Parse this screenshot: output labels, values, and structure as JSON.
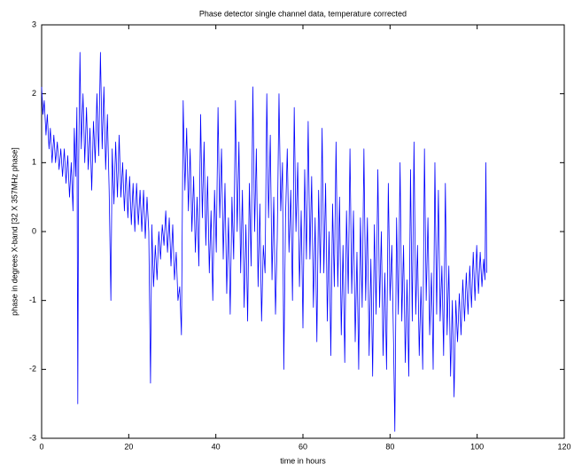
{
  "chart_data": {
    "type": "line",
    "title": "Phase detector single channel data, temperature corrected",
    "x_label": "time in hours",
    "y_label": "phase in degrees X-band [32 X 357MHz phase]",
    "xlim": [
      0,
      120
    ],
    "xticks": [
      0,
      20,
      40,
      60,
      80,
      100,
      120
    ],
    "ylim": [
      -3,
      3
    ],
    "yticks": [
      -3,
      -2,
      -1,
      0,
      1,
      2,
      3
    ],
    "grid": false,
    "x": [
      0,
      0.3,
      0.6,
      1,
      1.3,
      1.7,
      2,
      2.4,
      2.8,
      3.2,
      3.6,
      4,
      4.4,
      4.8,
      5.2,
      5.6,
      6,
      6.4,
      6.8,
      7.2,
      7.5,
      7.8,
      8.1,
      8.3,
      8.5,
      8.8,
      9.1,
      9.5,
      9.9,
      10.3,
      10.7,
      11.1,
      11.5,
      11.9,
      12.3,
      12.7,
      13.1,
      13.5,
      13.9,
      14.3,
      14.7,
      15.1,
      15.5,
      15.9,
      16.2,
      16.6,
      17,
      17.4,
      17.8,
      18.2,
      18.6,
      19,
      19.4,
      19.8,
      20.2,
      20.6,
      21,
      21.4,
      21.8,
      22.2,
      22.6,
      23,
      23.4,
      23.8,
      24.2,
      24.6,
      25,
      25.3,
      25.7,
      26.1,
      26.5,
      26.9,
      27.3,
      27.7,
      28.1,
      28.5,
      28.9,
      29.3,
      29.7,
      30.1,
      30.5,
      30.9,
      31.3,
      31.7,
      32.1,
      32.5,
      32.9,
      33.3,
      33.7,
      34.1,
      34.5,
      34.9,
      35.3,
      35.7,
      36.1,
      36.5,
      36.9,
      37.3,
      37.7,
      38.1,
      38.5,
      38.9,
      39.3,
      39.7,
      40.1,
      40.5,
      40.9,
      41.3,
      41.7,
      42.1,
      42.5,
      42.9,
      43.3,
      43.7,
      44.1,
      44.5,
      44.9,
      45.3,
      45.7,
      46.1,
      46.5,
      46.9,
      47.3,
      47.7,
      48.1,
      48.5,
      48.9,
      49.3,
      49.7,
      50.1,
      50.5,
      50.9,
      51.3,
      51.7,
      52.1,
      52.5,
      52.9,
      53.3,
      53.7,
      54.1,
      54.5,
      54.9,
      55.3,
      55.6,
      56,
      56.4,
      56.8,
      57.2,
      57.6,
      58,
      58.4,
      58.8,
      59.2,
      59.6,
      60,
      60.4,
      60.8,
      61.2,
      61.6,
      62,
      62.4,
      62.8,
      63.2,
      63.6,
      64,
      64.4,
      64.8,
      65.2,
      65.6,
      66,
      66.4,
      66.8,
      67.2,
      67.6,
      68,
      68.4,
      68.8,
      69.2,
      69.6,
      70,
      70.4,
      70.8,
      71.2,
      71.6,
      72,
      72.4,
      72.8,
      73.2,
      73.6,
      74,
      74.4,
      74.8,
      75.2,
      75.6,
      76,
      76.4,
      76.8,
      77.2,
      77.6,
      78,
      78.4,
      78.8,
      79.2,
      79.6,
      80,
      80.4,
      80.8,
      81.1,
      81.5,
      81.9,
      82.3,
      82.7,
      83.1,
      83.5,
      83.9,
      84.3,
      84.7,
      85.1,
      85.5,
      85.9,
      86.3,
      86.7,
      87.1,
      87.5,
      87.9,
      88.3,
      88.7,
      89.1,
      89.5,
      89.9,
      90.3,
      90.7,
      91.1,
      91.5,
      91.9,
      92.3,
      92.7,
      93.1,
      93.5,
      93.9,
      94.3,
      94.7,
      95.1,
      95.5,
      95.9,
      96.3,
      96.7,
      97.1,
      97.5,
      97.9,
      98.3,
      98.7,
      99.1,
      99.5,
      99.9,
      100.3,
      100.7,
      101.1,
      101.5,
      101.8,
      102,
      102.2
    ],
    "series": [
      {
        "color": "#0000ff",
        "values": [
          2.1,
          1.7,
          1.9,
          1.4,
          1.7,
          1.2,
          1.5,
          1.0,
          1.4,
          1.0,
          1.3,
          0.9,
          1.2,
          0.8,
          1.2,
          0.7,
          1.1,
          0.5,
          1.0,
          0.3,
          1.5,
          0.8,
          1.8,
          -2.5,
          1.0,
          2.6,
          1.2,
          2.0,
          1.0,
          1.8,
          0.9,
          1.5,
          0.6,
          1.6,
          1.0,
          2.0,
          1.1,
          2.6,
          1.2,
          2.1,
          0.9,
          1.7,
          0.6,
          -1.0,
          1.2,
          0.4,
          1.3,
          0.5,
          1.4,
          0.5,
          1.0,
          0.3,
          0.9,
          0.2,
          0.8,
          0.1,
          0.7,
          0.0,
          0.7,
          0.1,
          0.6,
          0.0,
          0.6,
          -0.1,
          0.5,
          0.0,
          -2.2,
          0.1,
          -0.8,
          -0.2,
          -0.7,
          0.0,
          -0.4,
          0.1,
          -0.2,
          0.3,
          -0.3,
          0.2,
          -0.5,
          0.1,
          -0.7,
          -0.3,
          -1.0,
          -0.8,
          -1.5,
          1.9,
          0.6,
          1.5,
          0.3,
          1.2,
          0.0,
          0.8,
          -0.3,
          0.5,
          -0.5,
          1.7,
          0.2,
          1.3,
          -0.2,
          0.8,
          -0.6,
          0.3,
          -1.0,
          0.6,
          -0.3,
          1.8,
          0.2,
          1.2,
          -0.4,
          0.7,
          -0.9,
          0.2,
          -1.2,
          0.5,
          -0.4,
          1.9,
          0.0,
          1.3,
          -0.6,
          0.6,
          -1.1,
          0.1,
          -1.3,
          0.7,
          -0.5,
          2.1,
          0.0,
          1.2,
          -0.8,
          0.4,
          -1.3,
          -0.2,
          -0.6,
          2.0,
          0.2,
          1.4,
          -0.7,
          0.5,
          -1.2,
          -0.1,
          2.0,
          0.3,
          1.0,
          -2.0,
          0.2,
          1.2,
          -0.3,
          0.6,
          -1.0,
          1.8,
          0.0,
          1.0,
          -0.8,
          0.3,
          -1.4,
          0.9,
          -0.4,
          1.6,
          -0.4,
          0.8,
          -1.1,
          0.2,
          -1.6,
          0.6,
          -0.6,
          1.5,
          -0.6,
          0.7,
          -1.3,
          0.0,
          -1.8,
          0.4,
          -0.8,
          1.3,
          -0.8,
          0.5,
          -1.5,
          -0.2,
          -1.9,
          0.3,
          -0.9,
          1.2,
          -0.9,
          0.3,
          -1.6,
          -0.3,
          -2.0,
          0.2,
          -1.1,
          1.2,
          -1.0,
          0.2,
          -1.8,
          -0.4,
          -2.1,
          0.1,
          -1.2,
          0.9,
          -1.1,
          0.0,
          -1.8,
          -0.6,
          -2.0,
          0.7,
          -1.0,
          -0.2,
          -1.6,
          -2.9,
          0.2,
          -1.2,
          1.0,
          -1.3,
          -0.2,
          -1.9,
          -0.7,
          -2.1,
          0.9,
          -1.3,
          1.3,
          -1.2,
          -0.2,
          -1.8,
          -0.8,
          -2.0,
          1.2,
          -1.0,
          0.2,
          -1.5,
          -0.6,
          -2.0,
          1.0,
          -1.2,
          0.6,
          -1.3,
          -0.5,
          -1.8,
          0.7,
          -1.5,
          -0.5,
          -2.1,
          -1.0,
          -2.4,
          -1.0,
          -1.6,
          -0.9,
          -1.5,
          -0.7,
          -1.3,
          -0.6,
          -1.2,
          -0.5,
          -1.1,
          -0.3,
          -1.0,
          -0.2,
          -0.9,
          -0.3,
          -0.8,
          -0.4,
          -0.7,
          1.0,
          -0.6
        ]
      }
    ]
  }
}
